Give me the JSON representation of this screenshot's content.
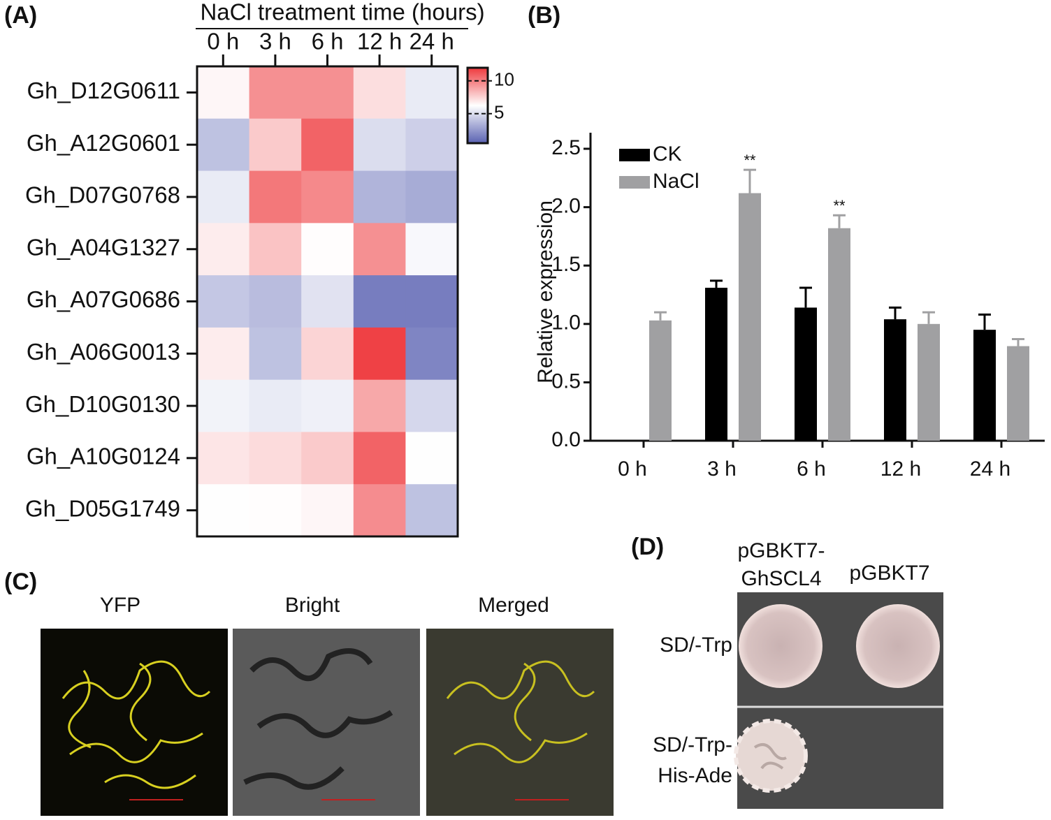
{
  "chart_data": [
    {
      "type": "heatmap",
      "panel_label": "(A)",
      "title": "NaCl treatment time (hours)",
      "x": [
        "0 h",
        "3 h",
        "6 h",
        "12 h",
        "24 h"
      ],
      "y": [
        "Gh_D12G0611",
        "Gh_A12G0601",
        "Gh_D07G0768",
        "Gh_A04G1327",
        "Gh_A07G0686",
        "Gh_A06G0013",
        "Gh_D10G0130",
        "Gh_A10G0124",
        "Gh_D05G1749"
      ],
      "values": [
        [
          6.5,
          9.5,
          9.5,
          7.2,
          5.5
        ],
        [
          4.0,
          7.8,
          10.8,
          5.0,
          4.5
        ],
        [
          5.5,
          10.2,
          9.7,
          3.5,
          3.2
        ],
        [
          6.8,
          8.0,
          6.3,
          9.5,
          6.0
        ],
        [
          4.2,
          3.8,
          5.2,
          1.5,
          1.5
        ],
        [
          6.8,
          4.0,
          7.5,
          11.8,
          1.8
        ],
        [
          5.8,
          5.5,
          5.7,
          8.8,
          4.8
        ],
        [
          7.0,
          7.3,
          7.8,
          10.8,
          6.2
        ],
        [
          6.2,
          6.3,
          6.5,
          9.6,
          4.0
        ]
      ],
      "clim": [
        0.5,
        12
      ],
      "cticks": [
        5,
        10
      ],
      "colors": [
        "#5a62b2",
        "#ffffff",
        "#ee3a3e"
      ]
    },
    {
      "type": "bar",
      "panel_label": "(B)",
      "ylabel": "Relative expression",
      "categories": [
        "0 h",
        "3 h",
        "6 h",
        "12 h",
        "24 h"
      ],
      "series": [
        {
          "name": "CK",
          "color": "#000000",
          "values": [
            null,
            1.31,
            1.14,
            1.04,
            0.95
          ],
          "errors": [
            null,
            0.06,
            0.17,
            0.1,
            0.13
          ]
        },
        {
          "name": "NaCl",
          "color": "#a0a0a2",
          "values": [
            1.03,
            2.12,
            1.82,
            1.0,
            0.81
          ],
          "errors": [
            0.07,
            0.2,
            0.11,
            0.1,
            0.06
          ],
          "significance": [
            null,
            "**",
            "**",
            null,
            null
          ]
        }
      ],
      "ylim": [
        0,
        2.5
      ],
      "yticks": [
        {
          "value": 0,
          "label": "0.0"
        },
        0.5,
        {
          "value": 1,
          "label": "1.0"
        },
        1.5,
        {
          "value": 2,
          "label": "2.0"
        },
        2.5
      ],
      "legend": "upper left"
    }
  ],
  "panel_c": {
    "panel_label": "(C)",
    "images": [
      "YFP",
      "Bright",
      "Merged"
    ]
  },
  "panel_d": {
    "panel_label": "(D)",
    "columns": [
      [
        "pGBKT7-",
        "GhSCL4"
      ],
      [
        "pGBKT7"
      ]
    ],
    "rows": [
      [
        "SD/-Trp"
      ],
      [
        "SD/-Trp-",
        "His-Ade"
      ]
    ]
  }
}
